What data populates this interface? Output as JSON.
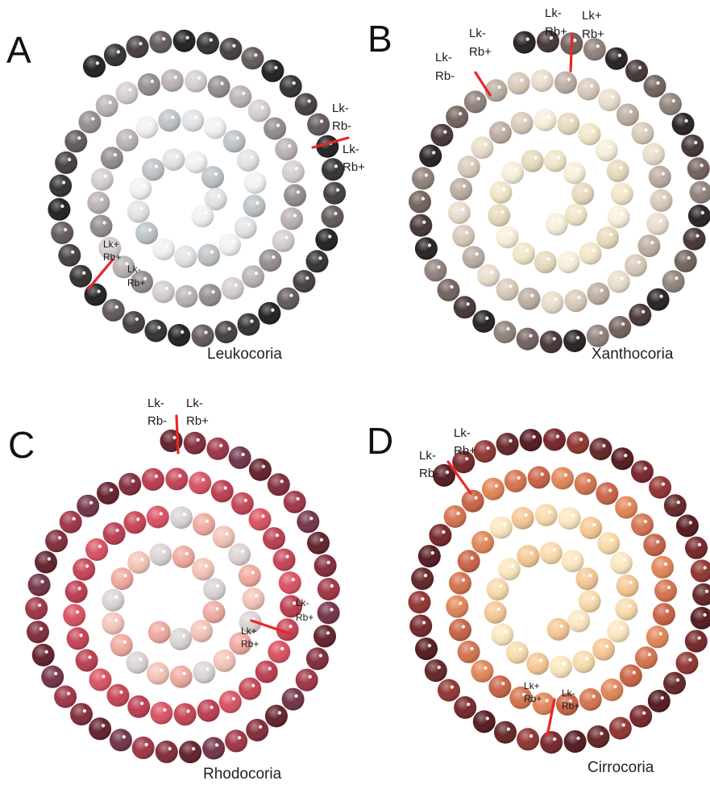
{
  "figure": {
    "panels": [
      {
        "letter": "A",
        "caption": "Leukocoria",
        "palette": {
          "outer": [
            "#151515",
            "#2a2626",
            "#3c3434",
            "#5a5050"
          ],
          "middle": [
            "#8f8686",
            "#b7aeae",
            "#d3cccc"
          ],
          "inner": [
            "#b9c0c4",
            "#e1e2e4",
            "#f2f1ef"
          ],
          "highlight": "#ffffff"
        },
        "labels": [
          "Lk-",
          "Rb-",
          "Lk-",
          "Rb+",
          "Lk+",
          "Rb+",
          "Lk-",
          "Rb+"
        ]
      },
      {
        "letter": "B",
        "caption": "Xanthocoria",
        "palette": {
          "outer": [
            "#1c1516",
            "#3b2b2a",
            "#6b5a55",
            "#8a7b74"
          ],
          "middle": [
            "#b8a89c",
            "#d6c7b5",
            "#e8dcc9"
          ],
          "inner": [
            "#e5d8b9",
            "#f0e5c3",
            "#f6efd9"
          ],
          "highlight": "#ffffff"
        },
        "labels": [
          "Lk-",
          "Rb+",
          "Lk+",
          "Rb+",
          "Lk-",
          "Rb+",
          "Lk-",
          "Rb-"
        ]
      },
      {
        "letter": "C",
        "caption": "Rhodocoria",
        "palette": {
          "outer": [
            "#5a1520",
            "#7a2130",
            "#9a2a3c",
            "#6a2840"
          ],
          "middle": [
            "#c23a4c",
            "#d8485a",
            "#b83347"
          ],
          "inner": [
            "#eea59a",
            "#f3c1b4",
            "#d9d2d3"
          ],
          "highlight": "#ffffff"
        },
        "labels": [
          "Lk-",
          "Rb-",
          "Lk-",
          "Rb+",
          "Lk-",
          "Rb+",
          "Lk+",
          "Rb+"
        ]
      },
      {
        "letter": "D",
        "caption": "Cirrocoria",
        "palette": {
          "outer": [
            "#4a0d12",
            "#6e1a1e",
            "#8a2a26",
            "#5a1a1a"
          ],
          "middle": [
            "#c55a3c",
            "#e0804f",
            "#d36c45"
          ],
          "inner": [
            "#f5c48f",
            "#f8d9a6",
            "#fbe6bd"
          ],
          "highlight": "#ffffff"
        },
        "labels": [
          "Lk-",
          "Rb+",
          "Lk-",
          "Rb-",
          "Lk+",
          "Rb+",
          "Lk-",
          "Rb+"
        ]
      }
    ]
  }
}
